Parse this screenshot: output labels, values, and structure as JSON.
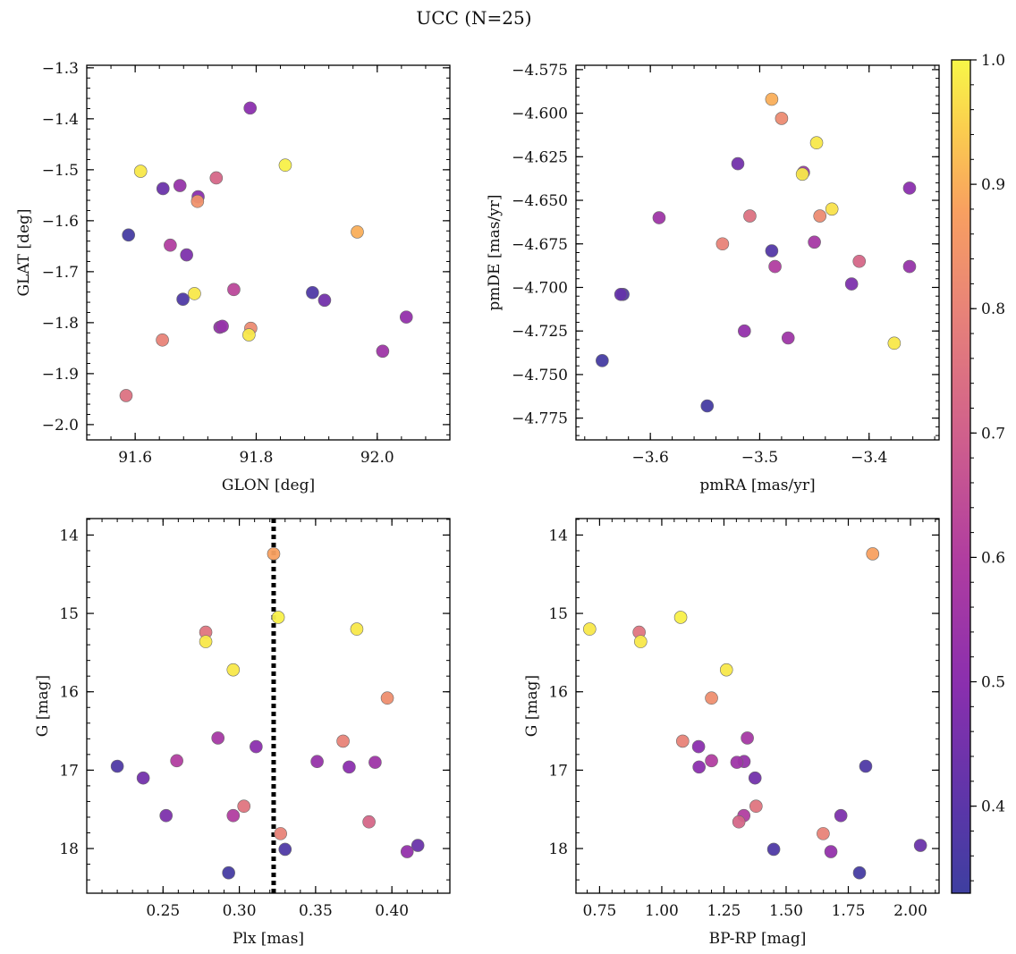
{
  "figure": {
    "title": "UCC (N=25)",
    "colorbar": {
      "min": 0.33,
      "max": 1.0,
      "ticks": [
        0.4,
        0.5,
        0.6,
        0.7,
        0.8,
        0.9,
        1.0
      ],
      "tick_labels": [
        "0.4",
        "0.5",
        "0.6",
        "0.7",
        "0.8",
        "0.9",
        "1.0"
      ],
      "colormap": "plasma"
    }
  },
  "chart_data": [
    {
      "type": "scatter",
      "id": "glon_glat",
      "title": "",
      "xlabel": "GLON [deg]",
      "ylabel": "GLAT [deg]",
      "xlim": [
        91.52,
        92.12
      ],
      "ylim": [
        -2.03,
        -1.295
      ],
      "y_inverted": false,
      "xticks": [
        91.6,
        91.8,
        92.0
      ],
      "xtick_labels": [
        "91.6",
        "91.8",
        "92.0"
      ],
      "yticks": [
        -2.0,
        -1.9,
        -1.8,
        -1.7,
        -1.6,
        -1.5,
        -1.4,
        -1.3
      ],
      "ytick_labels": [
        "−2.0",
        "−1.9",
        "−1.8",
        "−1.7",
        "−1.6",
        "−1.5",
        "−1.4",
        "−1.3"
      ],
      "points": [
        {
          "x": 91.79,
          "y": -1.379,
          "p": 0.5
        },
        {
          "x": 91.848,
          "y": -1.491,
          "p": 0.99
        },
        {
          "x": 91.609,
          "y": -1.503,
          "p": 0.98
        },
        {
          "x": 91.734,
          "y": -1.516,
          "p": 0.72
        },
        {
          "x": 91.646,
          "y": -1.537,
          "p": 0.43
        },
        {
          "x": 91.674,
          "y": -1.531,
          "p": 0.53
        },
        {
          "x": 91.704,
          "y": -1.553,
          "p": 0.5
        },
        {
          "x": 91.703,
          "y": -1.562,
          "p": 0.84
        },
        {
          "x": 91.589,
          "y": -1.628,
          "p": 0.35
        },
        {
          "x": 91.967,
          "y": -1.622,
          "p": 0.9
        },
        {
          "x": 91.658,
          "y": -1.648,
          "p": 0.6
        },
        {
          "x": 91.685,
          "y": -1.667,
          "p": 0.47
        },
        {
          "x": 91.763,
          "y": -1.735,
          "p": 0.63
        },
        {
          "x": 91.698,
          "y": -1.743,
          "p": 0.98
        },
        {
          "x": 91.679,
          "y": -1.754,
          "p": 0.37
        },
        {
          "x": 91.893,
          "y": -1.741,
          "p": 0.37
        },
        {
          "x": 91.913,
          "y": -1.756,
          "p": 0.45
        },
        {
          "x": 92.048,
          "y": -1.789,
          "p": 0.52
        },
        {
          "x": 91.744,
          "y": -1.807,
          "p": 0.53
        },
        {
          "x": 91.74,
          "y": -1.809,
          "p": 0.52
        },
        {
          "x": 91.791,
          "y": -1.811,
          "p": 0.82
        },
        {
          "x": 91.788,
          "y": -1.824,
          "p": 0.98
        },
        {
          "x": 91.645,
          "y": -1.834,
          "p": 0.8
        },
        {
          "x": 92.009,
          "y": -1.856,
          "p": 0.55
        },
        {
          "x": 91.585,
          "y": -1.943,
          "p": 0.75
        }
      ]
    },
    {
      "type": "scatter",
      "id": "pmra_pmde",
      "title": "",
      "xlabel": "pmRA [mas/yr]",
      "ylabel": "pmDE [mas/yr]",
      "xlim": [
        -3.668,
        -3.336
      ],
      "ylim": [
        -4.7875,
        -4.5725
      ],
      "y_inverted": false,
      "xticks": [
        -3.6,
        -3.5,
        -3.4
      ],
      "xtick_labels": [
        "−3.6",
        "−3.5",
        "−3.4"
      ],
      "yticks": [
        -4.775,
        -4.75,
        -4.725,
        -4.7,
        -4.675,
        -4.65,
        -4.625,
        -4.6,
        -4.575
      ],
      "ytick_labels": [
        "−4.775",
        "−4.750",
        "−4.725",
        "−4.700",
        "−4.675",
        "−4.650",
        "−4.625",
        "−4.600",
        "−4.575"
      ],
      "points": [
        {
          "x": -3.489,
          "y": -4.592,
          "p": 0.9
        },
        {
          "x": -3.48,
          "y": -4.603,
          "p": 0.82
        },
        {
          "x": -3.448,
          "y": -4.617,
          "p": 0.98
        },
        {
          "x": -3.52,
          "y": -4.629,
          "p": 0.45
        },
        {
          "x": -3.46,
          "y": -4.634,
          "p": 0.55
        },
        {
          "x": -3.461,
          "y": -4.635,
          "p": 0.98
        },
        {
          "x": -3.363,
          "y": -4.643,
          "p": 0.5
        },
        {
          "x": -3.434,
          "y": -4.655,
          "p": 0.97
        },
        {
          "x": -3.445,
          "y": -4.659,
          "p": 0.82
        },
        {
          "x": -3.509,
          "y": -4.659,
          "p": 0.75
        },
        {
          "x": -3.592,
          "y": -4.66,
          "p": 0.55
        },
        {
          "x": -3.534,
          "y": -4.675,
          "p": 0.8
        },
        {
          "x": -3.45,
          "y": -4.674,
          "p": 0.57
        },
        {
          "x": -3.489,
          "y": -4.679,
          "p": 0.38
        },
        {
          "x": -3.409,
          "y": -4.685,
          "p": 0.72
        },
        {
          "x": -3.486,
          "y": -4.688,
          "p": 0.6
        },
        {
          "x": -3.363,
          "y": -4.688,
          "p": 0.53
        },
        {
          "x": -3.416,
          "y": -4.698,
          "p": 0.47
        },
        {
          "x": -3.627,
          "y": -4.704,
          "p": 0.42
        },
        {
          "x": -3.625,
          "y": -4.704,
          "p": 0.37
        },
        {
          "x": -3.514,
          "y": -4.725,
          "p": 0.52
        },
        {
          "x": -3.474,
          "y": -4.729,
          "p": 0.55
        },
        {
          "x": -3.377,
          "y": -4.732,
          "p": 0.98
        },
        {
          "x": -3.644,
          "y": -4.742,
          "p": 0.35
        },
        {
          "x": -3.548,
          "y": -4.768,
          "p": 0.35
        }
      ]
    },
    {
      "type": "scatter",
      "id": "plx_g",
      "title": "",
      "xlabel": "Plx [mas]",
      "ylabel": "G [mag]",
      "xlim": [
        0.2,
        0.438
      ],
      "ylim": [
        13.79,
        18.57
      ],
      "y_inverted": true,
      "xticks": [
        0.25,
        0.3,
        0.35,
        0.4
      ],
      "xtick_labels": [
        "0.25",
        "0.30",
        "0.35",
        "0.40"
      ],
      "yticks": [
        14,
        15,
        16,
        17,
        18
      ],
      "ytick_labels": [
        "14",
        "15",
        "16",
        "17",
        "18"
      ],
      "vline": 0.3225,
      "points": [
        {
          "x": 0.3225,
          "y": 14.24,
          "p": 0.88
        },
        {
          "x": 0.3255,
          "y": 15.05,
          "p": 0.99
        },
        {
          "x": 0.278,
          "y": 15.24,
          "p": 0.76
        },
        {
          "x": 0.377,
          "y": 15.2,
          "p": 0.98
        },
        {
          "x": 0.278,
          "y": 15.36,
          "p": 0.98
        },
        {
          "x": 0.296,
          "y": 15.72,
          "p": 0.98
        },
        {
          "x": 0.397,
          "y": 16.08,
          "p": 0.83
        },
        {
          "x": 0.286,
          "y": 16.59,
          "p": 0.57
        },
        {
          "x": 0.368,
          "y": 16.63,
          "p": 0.8
        },
        {
          "x": 0.311,
          "y": 16.7,
          "p": 0.5
        },
        {
          "x": 0.259,
          "y": 16.88,
          "p": 0.6
        },
        {
          "x": 0.351,
          "y": 16.89,
          "p": 0.53
        },
        {
          "x": 0.389,
          "y": 16.9,
          "p": 0.55
        },
        {
          "x": 0.22,
          "y": 16.95,
          "p": 0.37
        },
        {
          "x": 0.372,
          "y": 16.96,
          "p": 0.5
        },
        {
          "x": 0.237,
          "y": 17.1,
          "p": 0.45
        },
        {
          "x": 0.303,
          "y": 17.46,
          "p": 0.76
        },
        {
          "x": 0.252,
          "y": 17.58,
          "p": 0.47
        },
        {
          "x": 0.296,
          "y": 17.58,
          "p": 0.6
        },
        {
          "x": 0.385,
          "y": 17.66,
          "p": 0.72
        },
        {
          "x": 0.327,
          "y": 17.81,
          "p": 0.8
        },
        {
          "x": 0.417,
          "y": 17.96,
          "p": 0.43
        },
        {
          "x": 0.33,
          "y": 18.01,
          "p": 0.37
        },
        {
          "x": 0.41,
          "y": 18.04,
          "p": 0.52
        },
        {
          "x": 0.293,
          "y": 18.31,
          "p": 0.35
        }
      ]
    },
    {
      "type": "scatter",
      "id": "bprp_g",
      "title": "",
      "xlabel": "BP-RP [mag]",
      "ylabel": "G [mag]",
      "xlim": [
        0.655,
        2.115
      ],
      "ylim": [
        13.79,
        18.57
      ],
      "y_inverted": true,
      "xticks": [
        0.75,
        1.0,
        1.25,
        1.5,
        1.75,
        2.0
      ],
      "xtick_labels": [
        "0.75",
        "1.00",
        "1.25",
        "1.50",
        "1.75",
        "2.00"
      ],
      "yticks": [
        14,
        15,
        16,
        17,
        18
      ],
      "ytick_labels": [
        "14",
        "15",
        "16",
        "17",
        "18"
      ],
      "points": [
        {
          "x": 1.848,
          "y": 14.24,
          "p": 0.88
        },
        {
          "x": 1.076,
          "y": 15.05,
          "p": 0.99
        },
        {
          "x": 0.909,
          "y": 15.24,
          "p": 0.76
        },
        {
          "x": 0.71,
          "y": 15.2,
          "p": 0.98
        },
        {
          "x": 0.915,
          "y": 15.36,
          "p": 0.98
        },
        {
          "x": 1.26,
          "y": 15.72,
          "p": 0.98
        },
        {
          "x": 1.2,
          "y": 16.08,
          "p": 0.83
        },
        {
          "x": 1.344,
          "y": 16.59,
          "p": 0.57
        },
        {
          "x": 1.084,
          "y": 16.63,
          "p": 0.8
        },
        {
          "x": 1.148,
          "y": 16.7,
          "p": 0.5
        },
        {
          "x": 1.2,
          "y": 16.88,
          "p": 0.6
        },
        {
          "x": 1.331,
          "y": 16.89,
          "p": 0.53
        },
        {
          "x": 1.302,
          "y": 16.9,
          "p": 0.55
        },
        {
          "x": 1.82,
          "y": 16.95,
          "p": 0.37
        },
        {
          "x": 1.15,
          "y": 16.96,
          "p": 0.5
        },
        {
          "x": 1.375,
          "y": 17.1,
          "p": 0.45
        },
        {
          "x": 1.379,
          "y": 17.46,
          "p": 0.76
        },
        {
          "x": 1.72,
          "y": 17.58,
          "p": 0.47
        },
        {
          "x": 1.33,
          "y": 17.58,
          "p": 0.6
        },
        {
          "x": 1.31,
          "y": 17.66,
          "p": 0.72
        },
        {
          "x": 1.649,
          "y": 17.81,
          "p": 0.8
        },
        {
          "x": 2.04,
          "y": 17.96,
          "p": 0.43
        },
        {
          "x": 1.45,
          "y": 18.01,
          "p": 0.37
        },
        {
          "x": 1.68,
          "y": 18.04,
          "p": 0.52
        },
        {
          "x": 1.795,
          "y": 18.31,
          "p": 0.35
        }
      ]
    }
  ]
}
